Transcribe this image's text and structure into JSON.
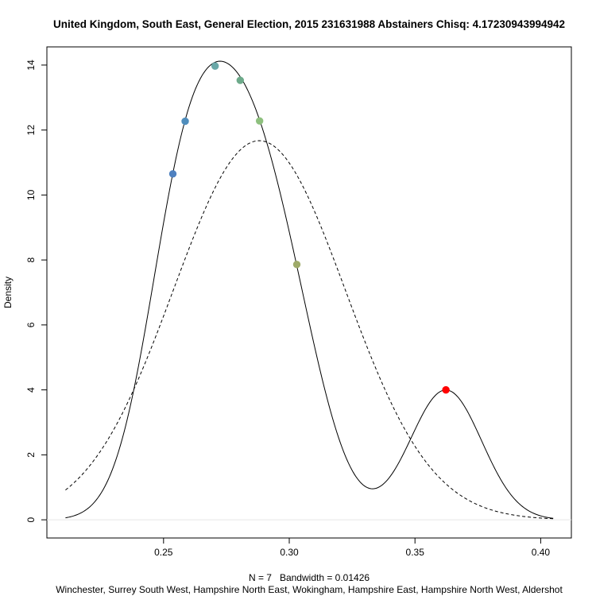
{
  "chart_data": {
    "type": "density",
    "title": "United Kingdom, South East, General Election, 2015 231631988 Abstainers Chisq: 4.17230943994942",
    "xlabel": "N = 7   Bandwidth = 0.01426",
    "ylabel": "Density",
    "footer": "Winchester, Surrey South West, Hampshire North East, Wokingham, Hampshire East, Hampshire North West, Aldershot",
    "xlim": [
      0.2036,
      0.4122
    ],
    "ylim": [
      -0.56,
      14.56
    ],
    "x_ticks": [
      0.25,
      0.3,
      0.35,
      0.4
    ],
    "x_tick_labels": [
      "0.25",
      "0.30",
      "0.35",
      "0.40"
    ],
    "y_ticks": [
      0,
      2,
      4,
      6,
      8,
      10,
      12,
      14
    ],
    "y_tick_labels": [
      "0",
      "2",
      "4",
      "6",
      "8",
      "10",
      "12",
      "14"
    ],
    "kde_bandwidth": 0.01426,
    "kde_range": [
      0.211,
      0.405
    ],
    "points": [
      {
        "x": 0.2537,
        "y": 10.65,
        "color": "#4f81c0"
      },
      {
        "x": 0.2586,
        "y": 12.27,
        "color": "#4f8dbc"
      },
      {
        "x": 0.2705,
        "y": 13.97,
        "color": "#6aa8a8"
      },
      {
        "x": 0.2805,
        "y": 13.53,
        "color": "#6daa8a"
      },
      {
        "x": 0.2882,
        "y": 12.28,
        "color": "#8ec07e"
      },
      {
        "x": 0.303,
        "y": 7.86,
        "color": "#9fab6a"
      },
      {
        "x": 0.3623,
        "y": 4.0,
        "color": "#ff0000"
      }
    ],
    "normal_curve": {
      "mean": 0.2881,
      "sd": 0.03418,
      "style": "dashed"
    }
  }
}
